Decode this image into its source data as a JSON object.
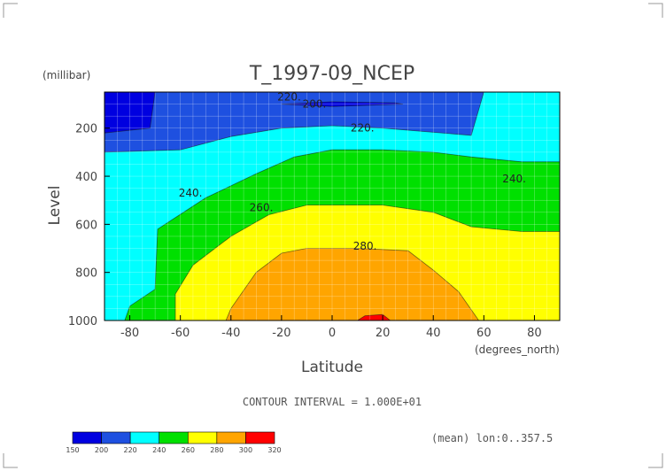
{
  "chart_data": {
    "type": "contour",
    "title": "T_1997-09_NCEP",
    "xlabel": "Latitude",
    "x_units": "(degrees_north)",
    "ylabel": "Level",
    "y_units": "(millibar)",
    "xlim": [
      -90,
      90
    ],
    "ylim": [
      1000,
      50
    ],
    "y_inverted": true,
    "x_ticks": [
      "-80",
      "-60",
      "-40",
      "-20",
      "0",
      "20",
      "40",
      "60",
      "80"
    ],
    "x_tick_values": [
      -80,
      -60,
      -40,
      -20,
      0,
      20,
      40,
      60,
      80
    ],
    "y_ticks": [
      "200",
      "400",
      "600",
      "800",
      "1000"
    ],
    "y_tick_values": [
      200,
      400,
      600,
      800,
      1000
    ],
    "contour_interval_text": "CONTOUR INTERVAL = 1.000E+01",
    "footer_text": "(mean) lon:0..357.5",
    "contour_labels": [
      {
        "text": "220.",
        "lat": -17,
        "level": 70
      },
      {
        "text": "200.",
        "lat": -7,
        "level": 100
      },
      {
        "text": "220.",
        "lat": 12,
        "level": 200
      },
      {
        "text": "240.",
        "lat": -56,
        "level": 470
      },
      {
        "text": "240.",
        "lat": 72,
        "level": 410
      },
      {
        "text": "260.",
        "lat": -28,
        "level": 530
      },
      {
        "text": "280.",
        "lat": 13,
        "level": 690
      }
    ],
    "regions": [
      {
        "band": "220-240",
        "points": [
          [
            -90,
            50
          ],
          [
            60,
            50
          ],
          [
            90,
            50
          ],
          [
            90,
            1000
          ],
          [
            -90,
            1000
          ]
        ]
      },
      {
        "band": "200-220",
        "points": [
          [
            -90,
            50
          ],
          [
            60,
            50
          ],
          [
            55,
            230
          ],
          [
            20,
            200
          ],
          [
            0,
            190
          ],
          [
            -20,
            200
          ],
          [
            -40,
            235
          ],
          [
            -60,
            290
          ],
          [
            -90,
            300
          ]
        ]
      },
      {
        "band": "190-200",
        "points": [
          [
            -90,
            50
          ],
          [
            -70,
            50
          ],
          [
            -72,
            200
          ],
          [
            -90,
            220
          ]
        ]
      },
      {
        "band": "190-200",
        "points": [
          [
            -20,
            100
          ],
          [
            0,
            90
          ],
          [
            25,
            95
          ],
          [
            28,
            100
          ],
          [
            0,
            110
          ]
        ]
      },
      {
        "band": "240-260",
        "points": [
          [
            -90,
            1000
          ],
          [
            -82,
            1000
          ],
          [
            -80,
            940
          ],
          [
            -70,
            870
          ],
          [
            -69,
            620
          ],
          [
            -50,
            490
          ],
          [
            -30,
            390
          ],
          [
            -15,
            320
          ],
          [
            0,
            290
          ],
          [
            20,
            290
          ],
          [
            40,
            300
          ],
          [
            55,
            320
          ],
          [
            75,
            340
          ],
          [
            90,
            340
          ],
          [
            90,
            1000
          ]
        ]
      },
      {
        "band": "260-280",
        "points": [
          [
            -62,
            1000
          ],
          [
            -62,
            890
          ],
          [
            -55,
            770
          ],
          [
            -40,
            650
          ],
          [
            -25,
            560
          ],
          [
            -10,
            520
          ],
          [
            0,
            520
          ],
          [
            20,
            520
          ],
          [
            40,
            550
          ],
          [
            55,
            610
          ],
          [
            75,
            630
          ],
          [
            90,
            630
          ],
          [
            90,
            1000
          ]
        ]
      },
      {
        "band": "280-300",
        "points": [
          [
            -42,
            1000
          ],
          [
            -40,
            950
          ],
          [
            -30,
            800
          ],
          [
            -20,
            720
          ],
          [
            -10,
            700
          ],
          [
            10,
            700
          ],
          [
            30,
            710
          ],
          [
            40,
            790
          ],
          [
            50,
            880
          ],
          [
            58,
            1000
          ]
        ]
      },
      {
        "band": "300-310",
        "points": [
          [
            10,
            1000
          ],
          [
            13,
            980
          ],
          [
            20,
            975
          ],
          [
            23,
            1000
          ]
        ]
      }
    ],
    "colorbar": {
      "labels": [
        "150",
        "200",
        "220",
        "240",
        "260",
        "280",
        "300",
        "320"
      ],
      "colors": [
        "#0000e0",
        "#1e50e0",
        "#00ffff",
        "#00e000",
        "#ffff00",
        "#ffa500",
        "#ff0000"
      ]
    },
    "band_colors": {
      "190-200": "#0000e0",
      "200-220": "#1e50e0",
      "220-240": "#00ffff",
      "240-260": "#00e000",
      "260-280": "#ffff00",
      "280-300": "#ffa500",
      "300-310": "#ff0000"
    }
  }
}
